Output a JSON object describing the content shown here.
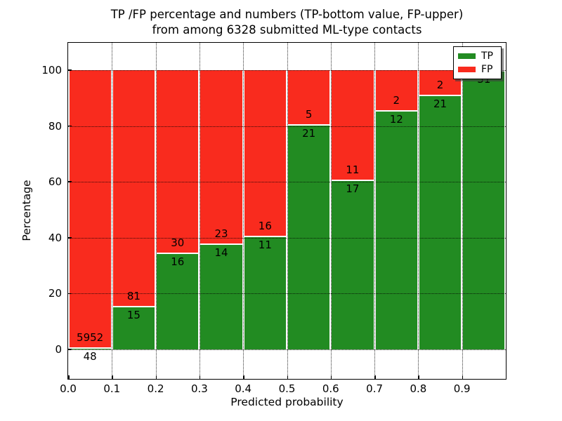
{
  "chart_data": {
    "type": "bar",
    "subtype": "stacked-percentage",
    "title": "TP /FP percentage and numbers (TP-bottom value, FP-upper)",
    "title_line2": "from among 6328 submitted ML-type contacts",
    "xlabel": "Predicted probability",
    "ylabel": "Percentage",
    "total_contacts": 6328,
    "categories": [
      "0.0-0.1",
      "0.1-0.2",
      "0.2-0.3",
      "0.3-0.4",
      "0.4-0.5",
      "0.5-0.6",
      "0.6-0.7",
      "0.7-0.8",
      "0.8-0.9",
      "0.9-1.0"
    ],
    "x_tick_labels": [
      "0.0",
      "0.1",
      "0.2",
      "0.3",
      "0.4",
      "0.5",
      "0.6",
      "0.7",
      "0.8",
      "0.9"
    ],
    "y_ticks": [
      0,
      20,
      40,
      60,
      80,
      100
    ],
    "xlim": [
      0.0,
      1.0
    ],
    "ylim": [
      -10.6,
      109.8
    ],
    "grid": "dotted",
    "series": [
      {
        "name": "TP",
        "color": "#228b22",
        "counts": [
          48,
          15,
          16,
          14,
          11,
          21,
          17,
          12,
          21,
          31
        ]
      },
      {
        "name": "FP",
        "color": "#f92b1e",
        "counts": [
          5952,
          81,
          30,
          23,
          16,
          5,
          11,
          2,
          2,
          0
        ]
      }
    ],
    "tp_percent": [
      0.8,
      15.6,
      34.8,
      37.8,
      40.7,
      80.8,
      60.7,
      85.7,
      91.3,
      100.0
    ],
    "legend_position": "upper-right"
  }
}
